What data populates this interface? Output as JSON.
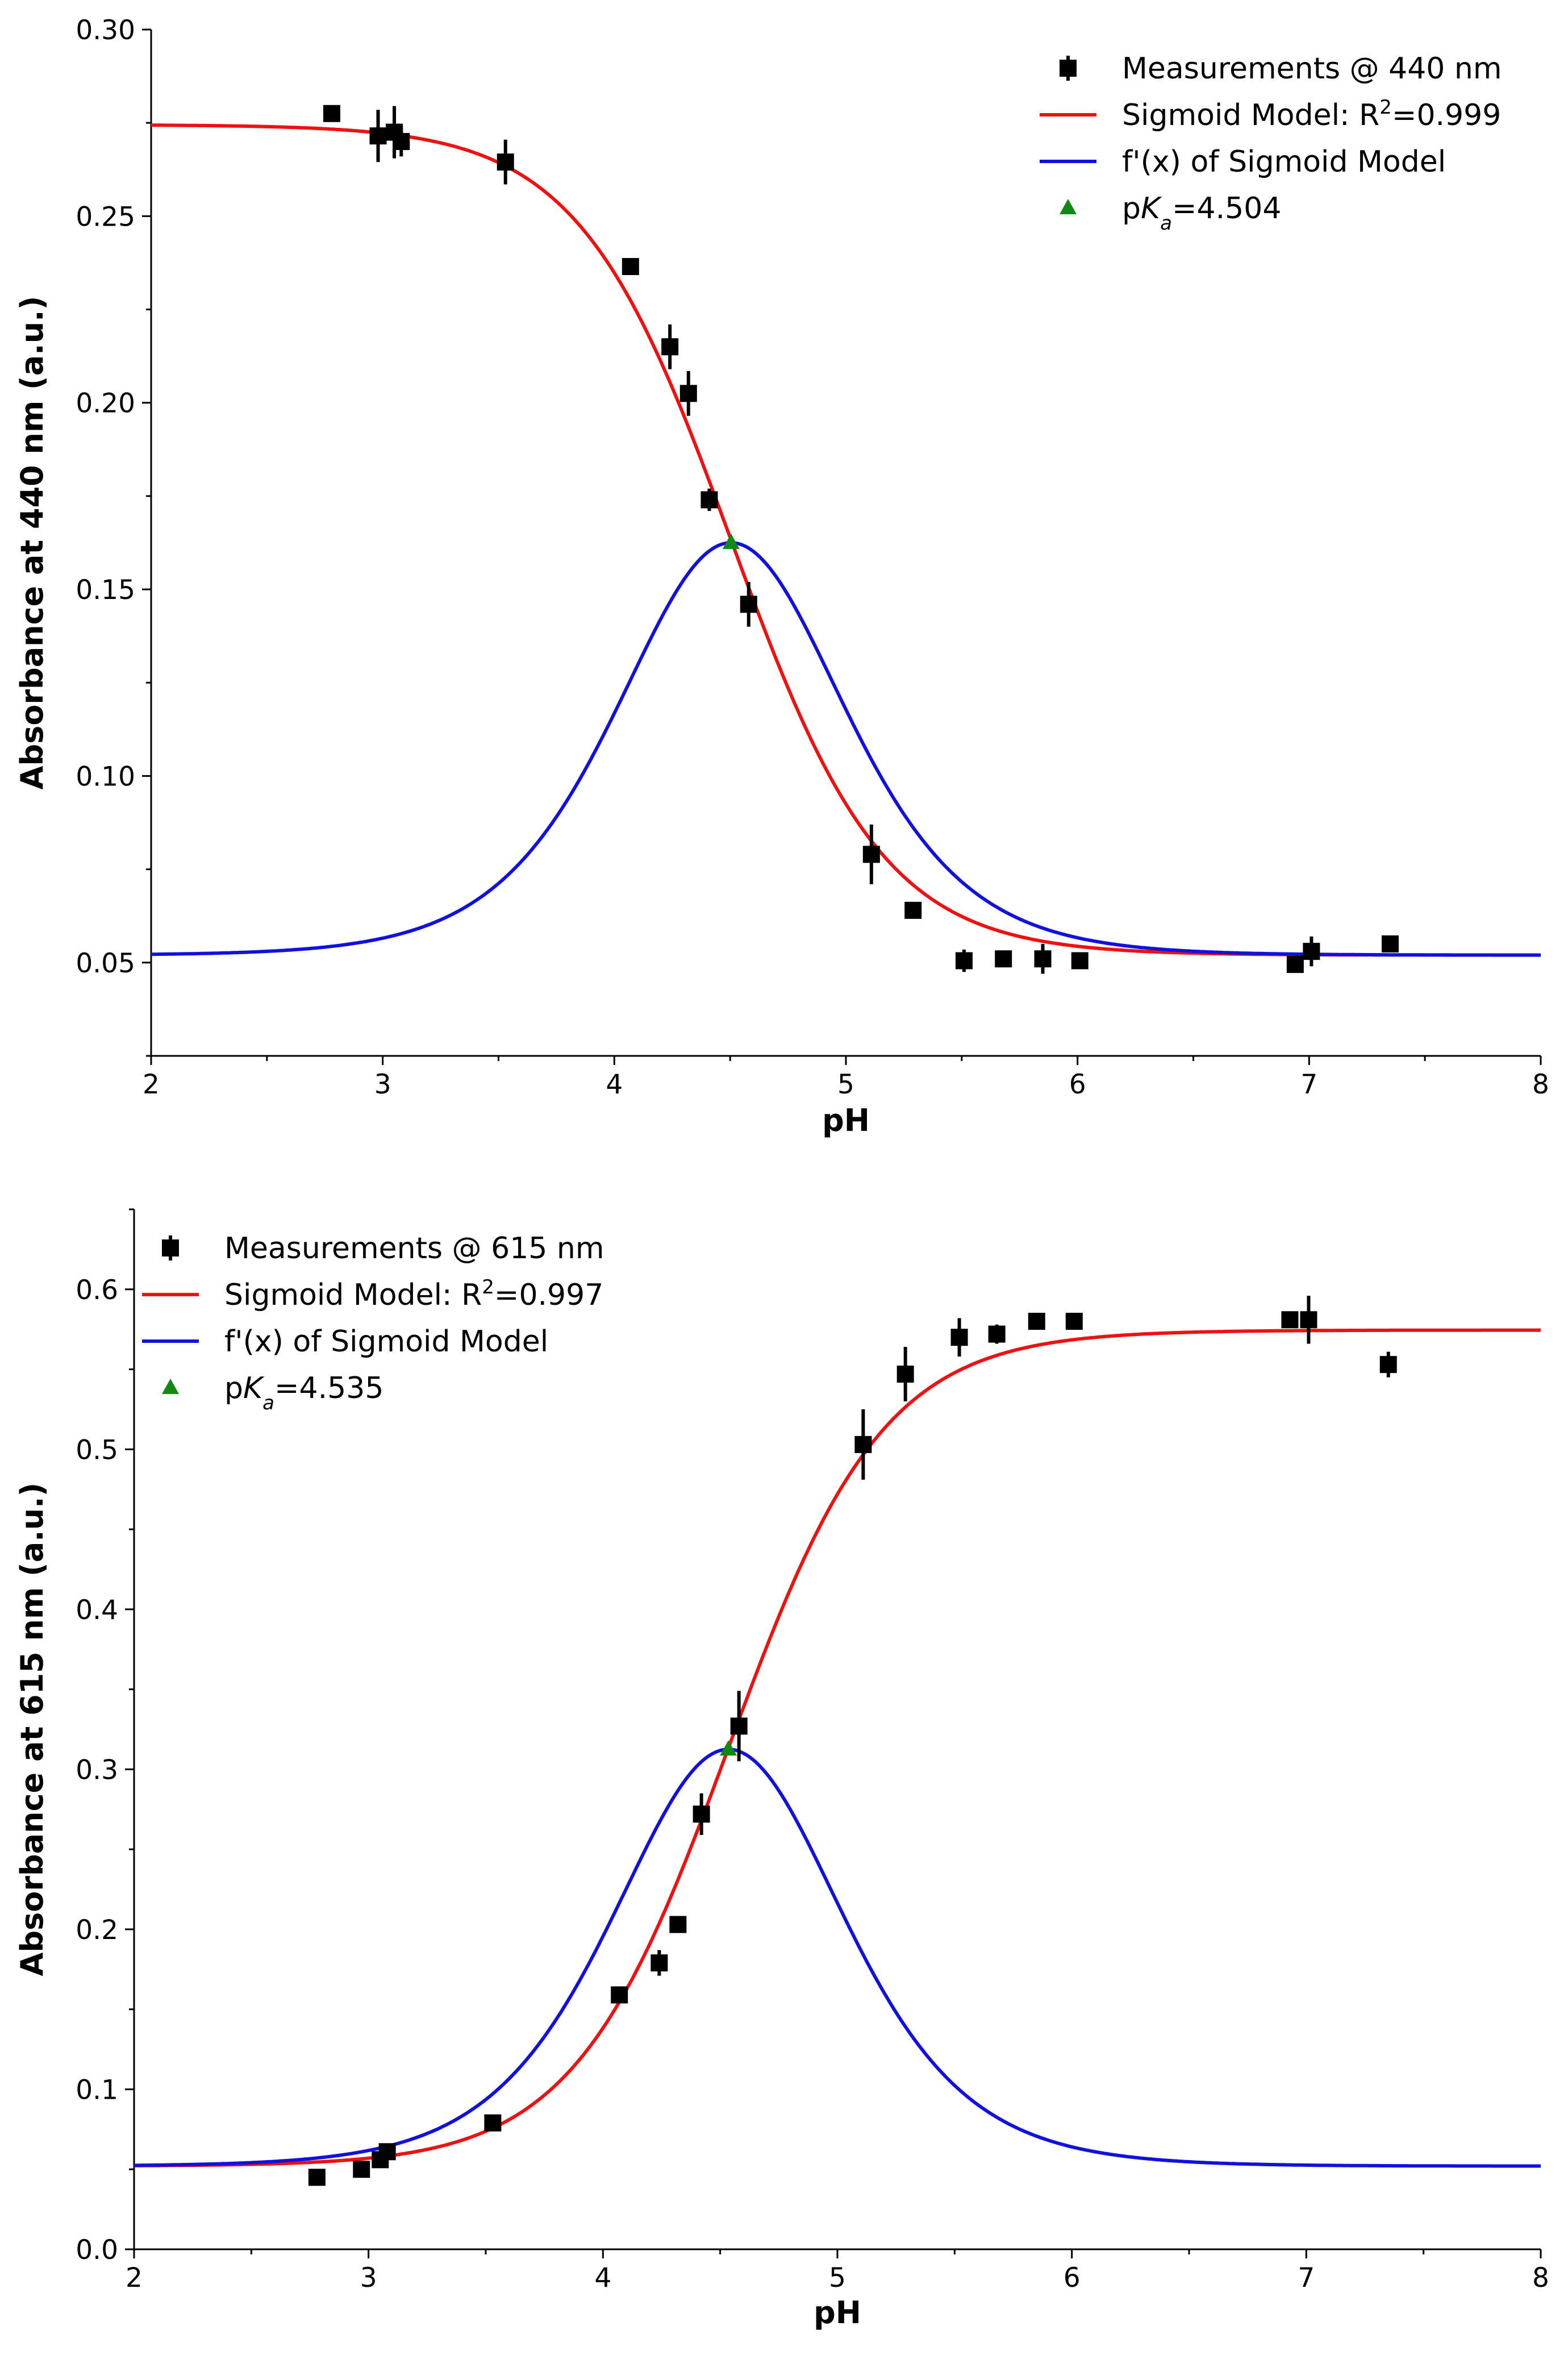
{
  "colors": {
    "measurement": "#000000",
    "sigmoid": "#ee1111",
    "derivative": "#1111dd",
    "pka": "#118811",
    "axis": "#000000",
    "background": "#ffffff"
  },
  "chart_data": [
    {
      "type": "scatter",
      "xlabel": "pH",
      "ylabel": "Absorbance at 440 nm (a.u.)",
      "xlim": [
        2,
        8
      ],
      "ylim": [
        0.025,
        0.3
      ],
      "xticks": [
        2,
        3,
        4,
        5,
        6,
        7,
        8
      ],
      "xtick_labels": [
        "2",
        "3",
        "4",
        "5",
        "6",
        "7",
        "8"
      ],
      "yticks": [
        0.05,
        0.1,
        0.15,
        0.2,
        0.25,
        0.3
      ],
      "ytick_labels": [
        "0.05",
        "0.10",
        "0.15",
        "0.20",
        "0.25",
        "0.30"
      ],
      "legend": {
        "placement": "top-right",
        "entries": [
          {
            "key": "measurements",
            "label": "Measurements @ 440 nm"
          },
          {
            "key": "sigmoid",
            "label_prefix": "Sigmoid Model: R",
            "label_sup": "2",
            "label_suffix": "=0.999"
          },
          {
            "key": "derivative",
            "label": "f'(x) of Sigmoid Model"
          },
          {
            "key": "pka",
            "label_prefix": "p",
            "label_italic": "K",
            "label_sub": "a",
            "label_suffix": "=4.504"
          }
        ]
      },
      "series": [
        {
          "name": "Measurements @ 440 nm",
          "key": "measurements",
          "kind": "errorbar",
          "x": [
            2.78,
            2.98,
            3.05,
            3.08,
            3.53,
            4.07,
            4.24,
            4.32,
            4.41,
            4.58,
            5.11,
            5.29,
            5.51,
            5.68,
            5.85,
            6.01,
            6.94,
            7.01,
            7.35
          ],
          "y": [
            0.2775,
            0.2715,
            0.2725,
            0.27,
            0.2645,
            0.2365,
            0.215,
            0.2025,
            0.174,
            0.146,
            0.079,
            0.064,
            0.0505,
            0.051,
            0.051,
            0.0505,
            0.0495,
            0.053,
            0.055
          ],
          "yerr": [
            0.001,
            0.007,
            0.007,
            0.004,
            0.006,
            0.002,
            0.006,
            0.006,
            0.003,
            0.006,
            0.008,
            0.002,
            0.003,
            0.002,
            0.004,
            0.002,
            0.002,
            0.004,
            0.002
          ]
        },
        {
          "name": "Sigmoid Model",
          "key": "sigmoid",
          "kind": "sigmoid",
          "top": 0.2745,
          "bottom": 0.052,
          "x0": 4.504,
          "slope": 0.33
        },
        {
          "name": "f'(x) of Sigmoid Model",
          "key": "derivative",
          "kind": "derivative",
          "base": 0.052,
          "peak": 0.1625,
          "x0": 4.504,
          "slope": 0.33
        },
        {
          "name": "pKa",
          "key": "pka",
          "kind": "marker",
          "x": [
            4.504
          ],
          "y": [
            0.1625
          ]
        }
      ]
    },
    {
      "type": "scatter",
      "xlabel": "pH",
      "ylabel": "Absorbance at 615 nm (a.u.)",
      "xlim": [
        2,
        8
      ],
      "ylim": [
        0.0,
        0.65
      ],
      "xticks": [
        2,
        3,
        4,
        5,
        6,
        7,
        8
      ],
      "xtick_labels": [
        "2",
        "3",
        "4",
        "5",
        "6",
        "7",
        "8"
      ],
      "yticks": [
        0.0,
        0.1,
        0.2,
        0.3,
        0.4,
        0.5,
        0.6
      ],
      "ytick_labels": [
        "0.0",
        "0.1",
        "0.2",
        "0.3",
        "0.4",
        "0.5",
        "0.6"
      ],
      "legend": {
        "placement": "top-left",
        "entries": [
          {
            "key": "measurements",
            "label": "Measurements @ 615 nm"
          },
          {
            "key": "sigmoid",
            "label_prefix": "Sigmoid Model: R",
            "label_sup": "2",
            "label_suffix": "=0.997"
          },
          {
            "key": "derivative",
            "label": "f'(x) of Sigmoid Model"
          },
          {
            "key": "pka",
            "label_prefix": "p",
            "label_italic": "K",
            "label_sub": "a",
            "label_suffix": "=4.535"
          }
        ]
      },
      "series": [
        {
          "name": "Measurements @ 615 nm",
          "key": "measurements",
          "kind": "errorbar",
          "x": [
            2.78,
            2.97,
            3.05,
            3.08,
            3.53,
            4.07,
            4.24,
            4.32,
            4.42,
            4.58,
            5.11,
            5.29,
            5.52,
            5.68,
            5.85,
            6.01,
            6.93,
            7.01,
            7.35
          ],
          "y": [
            0.045,
            0.05,
            0.056,
            0.061,
            0.079,
            0.159,
            0.179,
            0.203,
            0.272,
            0.327,
            0.503,
            0.547,
            0.57,
            0.572,
            0.58,
            0.58,
            0.581,
            0.581,
            0.553
          ],
          "yerr": [
            0.002,
            0.003,
            0.003,
            0.004,
            0.003,
            0.004,
            0.008,
            0.004,
            0.013,
            0.022,
            0.022,
            0.017,
            0.012,
            0.006,
            0.004,
            0.004,
            0.004,
            0.015,
            0.008
          ]
        },
        {
          "name": "Sigmoid Model",
          "key": "sigmoid",
          "kind": "sigmoid",
          "top": 0.052,
          "bottom": 0.5745,
          "x0": 4.535,
          "slope": 0.33
        },
        {
          "name": "f'(x) of Sigmoid Model",
          "key": "derivative",
          "kind": "derivative",
          "base": 0.052,
          "peak": 0.3125,
          "x0": 4.535,
          "slope": 0.33
        },
        {
          "name": "pKa",
          "key": "pka",
          "kind": "marker",
          "x": [
            4.535
          ],
          "y": [
            0.3125
          ]
        }
      ]
    }
  ]
}
